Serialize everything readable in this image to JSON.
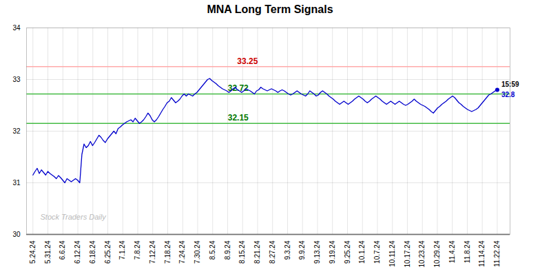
{
  "chart_data": {
    "type": "line",
    "title": "MNA Long Term Signals",
    "background_color": "#ffffff",
    "color": "#0000cc",
    "values": [
      31.15,
      31.22,
      31.28,
      31.18,
      31.25,
      31.2,
      31.15,
      31.22,
      31.18,
      31.15,
      31.12,
      31.08,
      31.14,
      31.1,
      31.05,
      31.0,
      31.08,
      31.05,
      31.02,
      31.05,
      31.08,
      31.05,
      31.0,
      31.55,
      31.75,
      31.68,
      31.72,
      31.8,
      31.72,
      31.78,
      31.85,
      31.92,
      31.88,
      31.82,
      31.78,
      31.85,
      31.9,
      31.95,
      32.0,
      31.95,
      32.05,
      32.08,
      32.12,
      32.15,
      32.18,
      32.2,
      32.22,
      32.18,
      32.25,
      32.2,
      32.15,
      32.18,
      32.22,
      32.28,
      32.35,
      32.3,
      32.22,
      32.18,
      32.22,
      32.28,
      32.35,
      32.42,
      32.48,
      32.55,
      32.58,
      32.65,
      32.6,
      32.55,
      32.58,
      32.62,
      32.68,
      32.72,
      32.68,
      32.72,
      32.7,
      32.68,
      32.72,
      32.75,
      32.8,
      32.85,
      32.9,
      32.95,
      33.0,
      33.02,
      32.98,
      32.95,
      32.92,
      32.88,
      32.85,
      32.82,
      32.8,
      32.78,
      32.75,
      32.78,
      32.82,
      32.85,
      32.8,
      32.78,
      32.75,
      32.78,
      32.82,
      32.8,
      32.78,
      32.75,
      32.72,
      32.78,
      32.8,
      32.85,
      32.82,
      32.8,
      32.78,
      32.8,
      32.82,
      32.8,
      32.78,
      32.75,
      32.78,
      32.8,
      32.78,
      32.75,
      32.72,
      32.7,
      32.72,
      32.75,
      32.78,
      32.75,
      32.72,
      32.7,
      32.68,
      32.72,
      32.78,
      32.75,
      32.72,
      32.68,
      32.7,
      32.75,
      32.78,
      32.75,
      32.72,
      32.68,
      32.65,
      32.62,
      32.58,
      32.55,
      32.52,
      32.55,
      32.58,
      32.55,
      32.52,
      32.55,
      32.58,
      32.62,
      32.65,
      32.68,
      32.65,
      32.62,
      32.58,
      32.55,
      32.58,
      32.62,
      32.65,
      32.68,
      32.65,
      32.62,
      32.58,
      32.55,
      32.52,
      32.55,
      32.58,
      32.55,
      32.52,
      32.55,
      32.58,
      32.55,
      32.52,
      32.5,
      32.52,
      32.55,
      32.58,
      32.62,
      32.58,
      32.55,
      32.52,
      32.5,
      32.48,
      32.45,
      32.42,
      32.38,
      32.35,
      32.4,
      32.45,
      32.48,
      32.52,
      32.55,
      32.58,
      32.62,
      32.65,
      32.68,
      32.65,
      32.6,
      32.55,
      32.52,
      32.48,
      32.45,
      32.42,
      32.4,
      32.38,
      32.4,
      32.42,
      32.45,
      32.5,
      32.55,
      32.6,
      32.65,
      32.7,
      32.72,
      32.75,
      32.78,
      32.8
    ],
    "xlim": [
      -3,
      224
    ],
    "xticks": [
      {
        "value": 0,
        "label": "5.24.24"
      },
      {
        "value": 7.032258064516129,
        "label": "5.31.24"
      },
      {
        "value": 14.064516129032258,
        "label": "6.6.24"
      },
      {
        "value": 21.096774193548388,
        "label": "6.12.24"
      },
      {
        "value": 28.129032258064516,
        "label": "6.18.24"
      },
      {
        "value": 35.16129032258065,
        "label": "6.25.24"
      },
      {
        "value": 42.193548387096776,
        "label": "7.1.24"
      },
      {
        "value": 49.225806451612904,
        "label": "7.8.24"
      },
      {
        "value": 56.25806451612903,
        "label": "7.12.24"
      },
      {
        "value": 63.29032258064516,
        "label": "7.18.24"
      },
      {
        "value": 70.3225806451613,
        "label": "7.24.24"
      },
      {
        "value": 77.35483870967742,
        "label": "7.30.24"
      },
      {
        "value": 84.38709677419355,
        "label": "8.5.24"
      },
      {
        "value": 91.41935483870968,
        "label": "8.9.24"
      },
      {
        "value": 98.45161290322581,
        "label": "8.15.24"
      },
      {
        "value": 105.48387096774194,
        "label": "8.21.24"
      },
      {
        "value": 112.51612903225806,
        "label": "8.27.24"
      },
      {
        "value": 119.54838709677419,
        "label": "9.3.24"
      },
      {
        "value": 126.58064516129032,
        "label": "9.9.24"
      },
      {
        "value": 133.61290322580646,
        "label": "9.13.24"
      },
      {
        "value": 140.6451612903226,
        "label": "9.19.24"
      },
      {
        "value": 147.67741935483872,
        "label": "9.25.24"
      },
      {
        "value": 154.70967741935485,
        "label": "10.1.24"
      },
      {
        "value": 161.74193548387098,
        "label": "10.7.24"
      },
      {
        "value": 168.7741935483871,
        "label": "10.11.24"
      },
      {
        "value": 175.80645161290323,
        "label": "10.17.24"
      },
      {
        "value": 182.83870967741936,
        "label": "10.23.24"
      },
      {
        "value": 189.8709677419355,
        "label": "10.29.24"
      },
      {
        "value": 196.90322580645162,
        "label": "11.4.24"
      },
      {
        "value": 203.93548387096774,
        "label": "11.8.24"
      },
      {
        "value": 210.96774193548387,
        "label": "11.14.24"
      },
      {
        "value": 218,
        "label": "11.22.24"
      }
    ],
    "ylim": [
      30,
      34
    ],
    "yticks": [
      30,
      31,
      32,
      33,
      34
    ],
    "grid": true,
    "hlines": [
      {
        "value": 33.25,
        "color": "#ffaaaa",
        "label": "33.25",
        "label_color": "#cc0000"
      },
      {
        "value": 32.72,
        "color": "#44bb44",
        "label": "32.72",
        "label_color": "#007700"
      },
      {
        "value": 32.15,
        "color": "#44bb44",
        "label": "32.15",
        "label_color": "#007700"
      }
    ],
    "endpoint": {
      "time_label": "15:59",
      "value_label": "32.8",
      "color": "#0000cc"
    },
    "watermark": "Stock Traders Daily",
    "watermark_color": "#bbbbbb"
  }
}
